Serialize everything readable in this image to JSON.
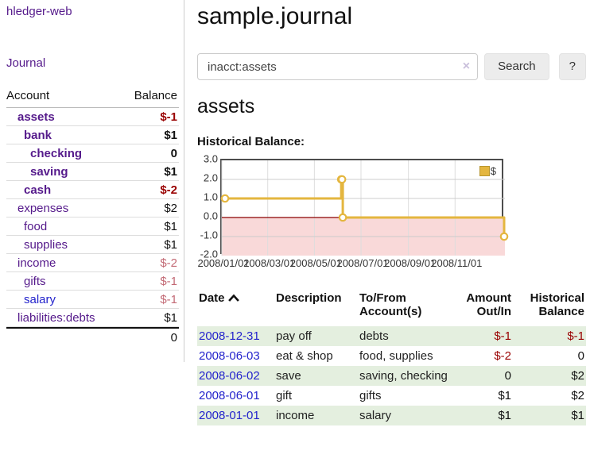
{
  "colors": {
    "accent_purple": "#551a8b",
    "link_blue": "#2323cc",
    "negative_strong": "#990000",
    "negative_weak": "#c36a75",
    "row_green": "#e4efdf",
    "chart_line_gold": "#e4b63f",
    "chart_negative_bg": "#f9d9d9",
    "zero_line_red": "#8b0000"
  },
  "sidebar": {
    "title": "hledger-web",
    "nav_journal": "Journal",
    "accounts": {
      "header_account": "Account",
      "header_balance": "Balance",
      "rows": [
        {
          "label": "assets",
          "balance": "$-1",
          "depth": 1,
          "emphasis": true,
          "negative": "strong",
          "link": "visited"
        },
        {
          "label": "bank",
          "balance": "$1",
          "depth": 2,
          "emphasis": true,
          "negative": "none",
          "link": "visited"
        },
        {
          "label": "checking",
          "balance": "0",
          "depth": 3,
          "emphasis": true,
          "negative": "none",
          "link": "visited"
        },
        {
          "label": "saving",
          "balance": "$1",
          "depth": 3,
          "emphasis": true,
          "negative": "none",
          "link": "visited"
        },
        {
          "label": "cash",
          "balance": "$-2",
          "depth": 2,
          "emphasis": true,
          "negative": "strong",
          "link": "visited"
        },
        {
          "label": "expenses",
          "balance": "$2",
          "depth": 1,
          "emphasis": false,
          "negative": "none",
          "link": "visited"
        },
        {
          "label": "food",
          "balance": "$1",
          "depth": 2,
          "emphasis": false,
          "negative": "none",
          "link": "visited"
        },
        {
          "label": "supplies",
          "balance": "$1",
          "depth": 2,
          "emphasis": false,
          "negative": "none",
          "link": "visited"
        },
        {
          "label": "income",
          "balance": "$-2",
          "depth": 1,
          "emphasis": false,
          "negative": "weak",
          "link": "visited"
        },
        {
          "label": "gifts",
          "balance": "$-1",
          "depth": 2,
          "emphasis": false,
          "negative": "weak",
          "link": "visited"
        },
        {
          "label": "salary",
          "balance": "$-1",
          "depth": 2,
          "emphasis": false,
          "negative": "weak",
          "link": "unvisited"
        },
        {
          "label": "liabilities:debts",
          "balance": "$1",
          "depth": 1,
          "emphasis": false,
          "negative": "none",
          "link": "visited"
        }
      ],
      "total": "0"
    }
  },
  "main": {
    "title": "sample.journal",
    "search": {
      "value": "inacct:assets",
      "clear_icon": "×",
      "button_label": "Search",
      "help_label": "?"
    },
    "account_heading": "assets",
    "chart_title": "Historical Balance:"
  },
  "chart_data": {
    "type": "line",
    "title": "Historical Balance:",
    "legend": "$",
    "legend_position": "top-right",
    "ylim": [
      -2.0,
      3.0
    ],
    "yticks": [
      "3.0",
      "2.0",
      "1.0",
      "0.0",
      "-1.0",
      "-2.0"
    ],
    "ytick_values": [
      3,
      2,
      1,
      0,
      -1,
      -2
    ],
    "xtick_labels": [
      "2008/01/01",
      "2008/03/01",
      "2008/05/01",
      "2008/07/01",
      "2008/09/01",
      "2008/11/01"
    ],
    "xtick_days": [
      0,
      60,
      121,
      182,
      244,
      305
    ],
    "x_total_days": 365,
    "series": [
      {
        "name": "$",
        "step": true,
        "points": [
          {
            "date": "2008-01-01",
            "day": 0,
            "value": 1
          },
          {
            "date": "2008-06-01",
            "day": 152,
            "value": 2
          },
          {
            "date": "2008-06-02",
            "day": 153,
            "value": 2
          },
          {
            "date": "2008-06-03",
            "day": 154,
            "value": 0
          },
          {
            "date": "2008-12-31",
            "day": 365,
            "value": -1
          }
        ]
      }
    ],
    "negative_region_shaded": true,
    "zero_line": true
  },
  "register": {
    "headers": {
      "date": "Date",
      "sort_icon": "caret-up",
      "description": "Description",
      "accounts_line1": "To/From",
      "accounts_line2": "Account(s)",
      "amount_line1": "Amount",
      "amount_line2": "Out/In",
      "balance_line1": "Historical",
      "balance_line2": "Balance"
    },
    "rows": [
      {
        "date": "2008-12-31",
        "description": "pay off",
        "accounts": "debts",
        "amount": "$-1",
        "amount_negative": true,
        "balance": "$-1",
        "balance_negative": true,
        "shaded": true
      },
      {
        "date": "2008-06-03",
        "description": "eat & shop",
        "accounts": "food, supplies",
        "amount": "$-2",
        "amount_negative": true,
        "balance": "0",
        "balance_negative": false,
        "shaded": false
      },
      {
        "date": "2008-06-02",
        "description": "save",
        "accounts": "saving, checking",
        "amount": "0",
        "amount_negative": false,
        "balance": "$2",
        "balance_negative": false,
        "shaded": true
      },
      {
        "date": "2008-06-01",
        "description": "gift",
        "accounts": "gifts",
        "amount": "$1",
        "amount_negative": false,
        "balance": "$2",
        "balance_negative": false,
        "shaded": false
      },
      {
        "date": "2008-01-01",
        "description": "income",
        "accounts": "salary",
        "amount": "$1",
        "amount_negative": false,
        "balance": "$1",
        "balance_negative": false,
        "shaded": true
      }
    ]
  }
}
